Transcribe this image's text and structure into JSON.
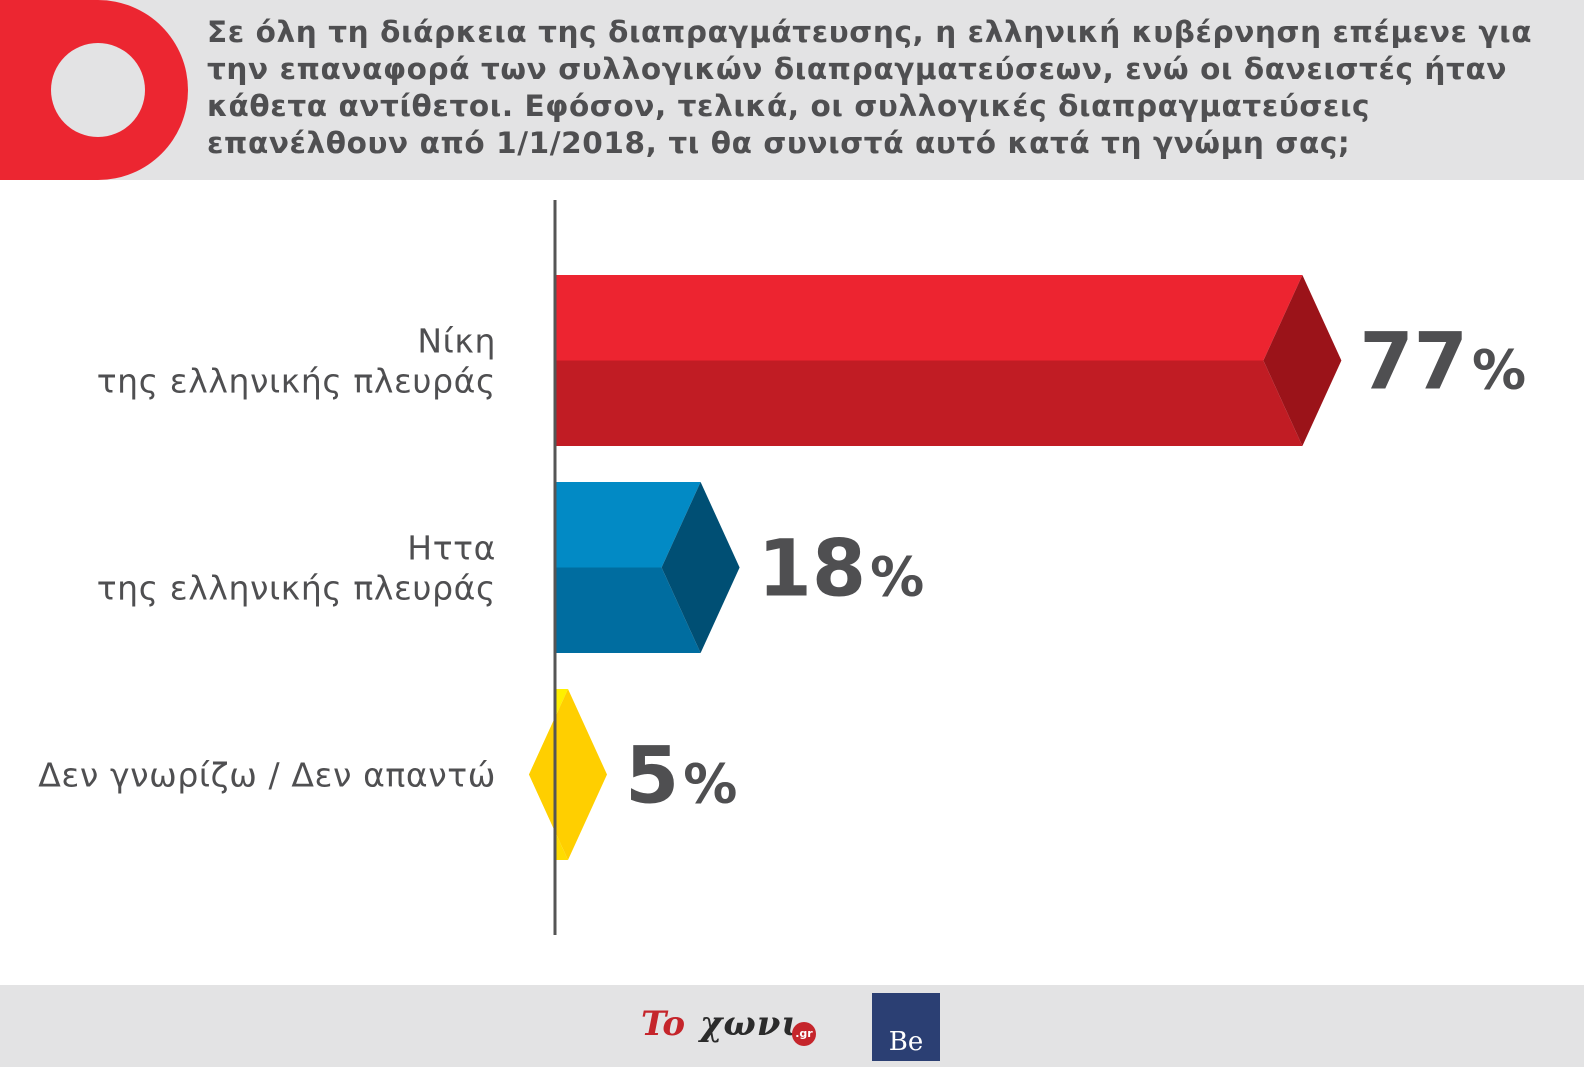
{
  "header": {
    "question": "Σε όλη τη διάρκεια της διαπραγμάτευσης, η ελληνική κυβέρνηση επέμενε για την επαναφορά των συλλογικών διαπραγματεύσεων, ενώ οι δανειστές ήταν κάθετα αντίθετοι. Εφόσον, τελικά, οι συλλογικές διαπραγματεύσεις επανέλθουν από 1/1/2018, τι θα συνιστά αυτό κατά τη γνώμη σας;",
    "badge_icon": "red-circle-badge-icon"
  },
  "chart_data": {
    "type": "bar",
    "orientation": "horizontal",
    "categories": [
      [
        "Νίκη",
        "της ελληνικής πλευράς"
      ],
      [
        "Ηττα",
        "της ελληνικής πλευράς"
      ],
      [
        "Δεν γνωρίζω / Δεν απαντώ"
      ]
    ],
    "values": [
      77,
      18,
      5
    ],
    "value_suffix": "%",
    "xlim": [
      0,
      100
    ],
    "grid": false,
    "legend": "none",
    "colors": [
      {
        "light": "#ed2430",
        "dark": "#c11c24",
        "tip": "#9b1319"
      },
      {
        "light": "#028ac5",
        "dark": "#006da0",
        "tip": "#004f74"
      },
      {
        "light": "#fff000",
        "dark": "#ffdc00",
        "tip": "#ffcf00"
      }
    ]
  },
  "footer": {
    "logo_to": "To",
    "logo_text": "χωνι",
    "logo_gr": ".gr",
    "logo_be": "Be"
  }
}
